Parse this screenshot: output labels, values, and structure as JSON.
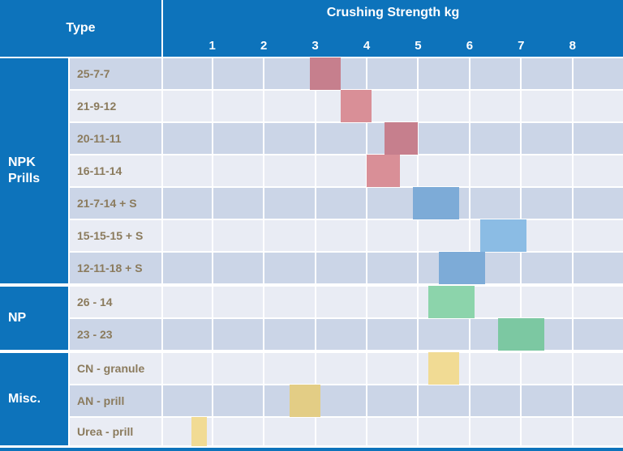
{
  "header": {
    "type_label": "Type",
    "title": "Crushing Strength kg"
  },
  "colors": {
    "blue": "#0d73bb",
    "row_dark": "#cbd5e7",
    "row_light": "#e9ecf4",
    "label_text": "#8b7b5d",
    "grid": "#ffffff",
    "bar_red_dark": "#c67f8d",
    "bar_red_light": "#d98f97",
    "bar_blue_dark": "#7dabd7",
    "bar_blue_light": "#8bbce4",
    "bar_green_light": "#8cd4ab",
    "bar_green_dark": "#7cc8a2",
    "bar_yellow_light": "#f1db94",
    "bar_yellow_dark": "#e3cd85"
  },
  "chart_data": {
    "type": "bar",
    "orientation": "horizontal-range",
    "title": "Crushing Strength kg",
    "xlabel": "Crushing Strength kg",
    "ylabel": "Type",
    "x_ticks": [
      "1",
      "2",
      "3",
      "4",
      "5",
      "6",
      "7",
      "8"
    ],
    "xlim": [
      0,
      9
    ],
    "grid": true,
    "legend": false,
    "groups": [
      {
        "name": "NPK\nPrills",
        "rows": [
          {
            "label": "25-7-7",
            "start": 2.9,
            "end": 3.5,
            "color": "#c67f8d",
            "shade": "dark"
          },
          {
            "label": "21-9-12",
            "start": 3.5,
            "end": 4.1,
            "color": "#d98f97",
            "shade": "light"
          },
          {
            "label": "20-11-11",
            "start": 4.35,
            "end": 5.0,
            "color": "#c67f8d",
            "shade": "dark"
          },
          {
            "label": "16-11-14",
            "start": 4.0,
            "end": 4.65,
            "color": "#d98f97",
            "shade": "light"
          },
          {
            "label": "21-7-14 + S",
            "start": 4.9,
            "end": 5.8,
            "color": "#7dabd7",
            "shade": "dark"
          },
          {
            "label": "15-15-15 + S",
            "start": 6.2,
            "end": 7.1,
            "color": "#8bbce4",
            "shade": "light"
          },
          {
            "label": "12-11-18 + S",
            "start": 5.4,
            "end": 6.3,
            "color": "#7dabd7",
            "shade": "dark"
          }
        ]
      },
      {
        "name": "NP",
        "rows": [
          {
            "label": "26 - 14",
            "start": 5.2,
            "end": 6.1,
            "color": "#8cd4ab",
            "shade": "light"
          },
          {
            "label": "23 - 23",
            "start": 6.55,
            "end": 7.45,
            "color": "#7cc8a2",
            "shade": "dark"
          }
        ]
      },
      {
        "name": "Misc.",
        "rows": [
          {
            "label": "CN - granule",
            "start": 5.2,
            "end": 5.8,
            "color": "#f1db94",
            "shade": "light"
          },
          {
            "label": "AN - prill",
            "start": 2.5,
            "end": 3.1,
            "color": "#e3cd85",
            "shade": "dark"
          },
          {
            "label": "Urea - prill",
            "start": 0.6,
            "end": 0.9,
            "color": "#f1db94",
            "shade": "light"
          }
        ]
      }
    ]
  }
}
